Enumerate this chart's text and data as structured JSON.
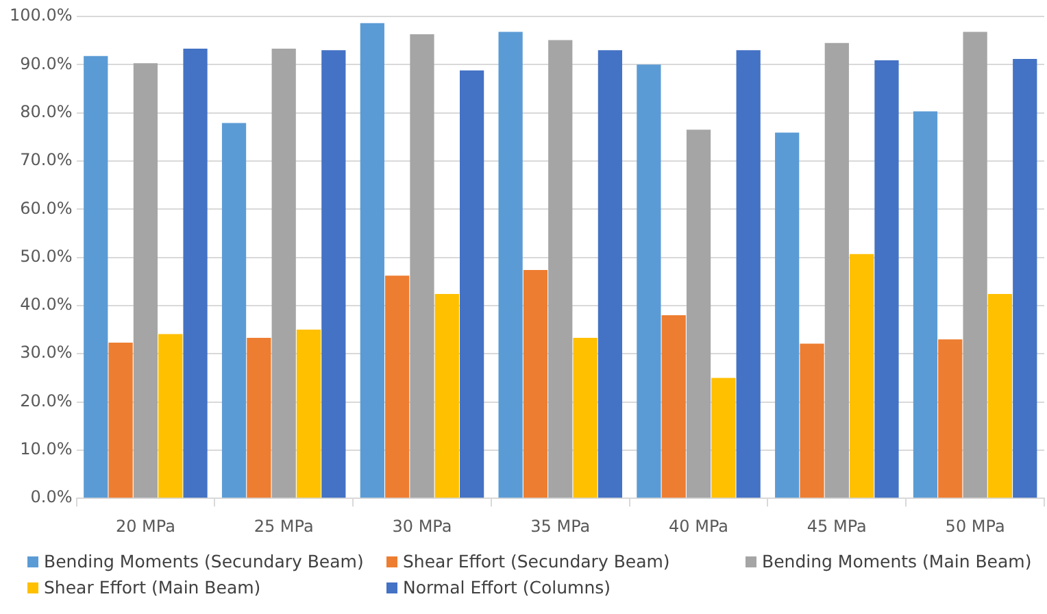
{
  "chart_data": {
    "type": "bar",
    "categories": [
      "20 MPa",
      "25 MPa",
      "30 MPa",
      "35 MPa",
      "40 MPa",
      "45 MPa",
      "50 MPa"
    ],
    "series": [
      {
        "name": "Bending Moments (Secundary Beam)",
        "color": "#5b9bd5",
        "values": [
          91.8,
          77.9,
          98.6,
          96.8,
          90.0,
          75.9,
          80.3
        ]
      },
      {
        "name": "Shear Effort (Secundary Beam)",
        "color": "#ed7d31",
        "values": [
          32.3,
          33.3,
          46.2,
          47.4,
          38.0,
          32.1,
          33.0
        ]
      },
      {
        "name": "Bending Moments (Main Beam)",
        "color": "#a5a5a5",
        "values": [
          90.3,
          93.3,
          96.3,
          95.1,
          76.5,
          94.5,
          96.8
        ]
      },
      {
        "name": "Shear Effort (Main Beam)",
        "color": "#ffc000",
        "values": [
          34.1,
          35.0,
          42.4,
          33.3,
          25.0,
          50.7,
          42.4
        ]
      },
      {
        "name": "Normal Effort (Columns)",
        "color": "#4472c4",
        "values": [
          93.3,
          93.0,
          88.8,
          93.0,
          93.0,
          90.9,
          91.2
        ]
      }
    ],
    "ylim": [
      0,
      100
    ],
    "yticks": [
      {
        "value": 0,
        "label": "0.0%"
      },
      {
        "value": 10,
        "label": "10.0%"
      },
      {
        "value": 20,
        "label": "20.0%"
      },
      {
        "value": 30,
        "label": "30.0%"
      },
      {
        "value": 40,
        "label": "40.0%"
      },
      {
        "value": 50,
        "label": "50.0%"
      },
      {
        "value": 60,
        "label": "60.0%"
      },
      {
        "value": 70,
        "label": "70.0%"
      },
      {
        "value": 80,
        "label": "80.0%"
      },
      {
        "value": 90,
        "label": "90.0%"
      },
      {
        "value": 100,
        "label": "100.0%"
      }
    ],
    "grid": "y",
    "legend": "bottom"
  }
}
